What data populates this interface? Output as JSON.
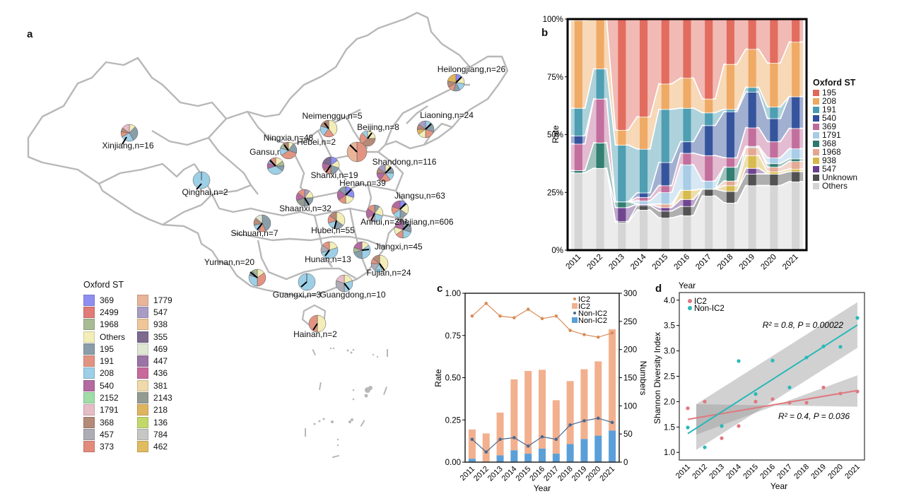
{
  "panels": {
    "a": "a",
    "b": "b",
    "c": "c",
    "d": "d"
  },
  "map": {
    "legend_title": "Oxford ST",
    "legend_col1": [
      {
        "label": "369",
        "color": "#8e8ef0"
      },
      {
        "label": "2499",
        "color": "#e07b78"
      },
      {
        "label": "1968",
        "color": "#a8bb94"
      },
      {
        "label": "Others",
        "color": "#f3edb8"
      },
      {
        "label": "195",
        "color": "#8a9eaa"
      },
      {
        "label": "191",
        "color": "#e29482"
      },
      {
        "label": "208",
        "color": "#9dcfe6"
      },
      {
        "label": "540",
        "color": "#b26aa0"
      },
      {
        "label": "2152",
        "color": "#9fdca6"
      },
      {
        "label": "1791",
        "color": "#e6bcc6"
      },
      {
        "label": "368",
        "color": "#b48a78"
      },
      {
        "label": "457",
        "color": "#aeadb6"
      },
      {
        "label": "373",
        "color": "#e28a7c"
      }
    ],
    "legend_col2": [
      {
        "label": "1779",
        "color": "#e8b49a"
      },
      {
        "label": "547",
        "color": "#a89cc4"
      },
      {
        "label": "938",
        "color": "#efc698"
      },
      {
        "label": "355",
        "color": "#7d6a8e"
      },
      {
        "label": "469",
        "color": "#dfe6d4"
      },
      {
        "label": "447",
        "color": "#9a74a4"
      },
      {
        "label": "436",
        "color": "#c86a9c"
      },
      {
        "label": "381",
        "color": "#f0d9aa"
      },
      {
        "label": "2143",
        "color": "#949c92"
      },
      {
        "label": "218",
        "color": "#deb45e"
      },
      {
        "label": "136",
        "color": "#c2d86a"
      },
      {
        "label": "784",
        "color": "#c6c6c4"
      },
      {
        "label": "462",
        "color": "#e0bc60"
      }
    ],
    "provinces": [
      {
        "label": "Xinjiang,n=16",
        "pie": [
          0.12,
          0.3,
          0.25,
          0.1,
          0.08,
          0.15
        ],
        "colors": [
          "#f3edb8",
          "#8a9eaa",
          "#9dcfe6",
          "#e29482",
          "#b48a78",
          "#e6bcc6"
        ]
      },
      {
        "label": "Qinghai,n=2",
        "pie": [
          1.0
        ],
        "colors": [
          "#9dcfe6"
        ]
      },
      {
        "label": "Gansu,n=20",
        "pie": [
          0.15,
          0.1,
          0.1,
          0.35,
          0.1,
          0.1,
          0.1
        ],
        "colors": [
          "#f3edb8",
          "#a8bb94",
          "#8a9eaa",
          "#9dcfe6",
          "#b26aa0",
          "#a89cc4",
          "#e29482"
        ]
      },
      {
        "label": "Ningxia,n=48",
        "pie": [
          0.1,
          0.2,
          0.35,
          0.15,
          0.1,
          0.1
        ],
        "colors": [
          "#f3edb8",
          "#8a9eaa",
          "#e29482",
          "#9dcfe6",
          "#a8bb94",
          "#b48a78"
        ]
      },
      {
        "label": "Neimenggu,n=5",
        "pie": [
          0.4,
          0.2,
          0.2,
          0.2
        ],
        "colors": [
          "#f3edb8",
          "#e29482",
          "#9dcfe6",
          "#b48a78"
        ]
      },
      {
        "label": "Beijing,n=8",
        "pie": [
          0.25,
          0.375,
          0.25,
          0.125
        ],
        "colors": [
          "#f3edb8",
          "#b48a78",
          "#e29482",
          "#9dcfe6"
        ]
      },
      {
        "label": "Hebei,n=2",
        "pie": [
          0.5,
          0.5
        ],
        "colors": [
          "#e29482",
          "#e8b49a"
        ]
      },
      {
        "label": "Liaoning,n=24",
        "pie": [
          0.15,
          0.15,
          0.2,
          0.15,
          0.1,
          0.1,
          0.15
        ],
        "colors": [
          "#9dcfe6",
          "#8a9eaa",
          "#e29482",
          "#f3edb8",
          "#deb45e",
          "#b48a78",
          "#a89cc4"
        ]
      },
      {
        "label": "Heilongjiang,n=26",
        "pie": [
          0.12,
          0.15,
          0.15,
          0.12,
          0.12,
          0.12,
          0.22
        ],
        "colors": [
          "#8e8ef0",
          "#f3edb8",
          "#9dcfe6",
          "#8a9eaa",
          "#e29482",
          "#b48a78",
          "#deb45e"
        ]
      },
      {
        "label": "Shanxi,n=19",
        "pie": [
          0.15,
          0.15,
          0.2,
          0.15,
          0.15,
          0.2
        ],
        "colors": [
          "#8e8ef0",
          "#f3edb8",
          "#8a9eaa",
          "#e29482",
          "#b26aa0",
          "#7d6a8e"
        ]
      },
      {
        "label": "Shandong,n=116",
        "pie": [
          0.1,
          0.15,
          0.15,
          0.2,
          0.15,
          0.1,
          0.15
        ],
        "colors": [
          "#f3edb8",
          "#8a9eaa",
          "#9dcfe6",
          "#e29482",
          "#b26aa0",
          "#b48a78",
          "#a89cc4"
        ]
      },
      {
        "label": "Henan,n=39",
        "pie": [
          0.3,
          0.2,
          0.15,
          0.2,
          0.15
        ],
        "colors": [
          "#8e8ef0",
          "#f3edb8",
          "#e29482",
          "#b26aa0",
          "#8a9eaa"
        ]
      },
      {
        "label": "Shaanxi,n=32",
        "pie": [
          0.1,
          0.15,
          0.25,
          0.2,
          0.15,
          0.15
        ],
        "colors": [
          "#a89cc4",
          "#f3edb8",
          "#8a9eaa",
          "#949c92",
          "#b26aa0",
          "#e29482"
        ]
      },
      {
        "label": "Jiangsu,n=63",
        "pie": [
          0.15,
          0.2,
          0.15,
          0.15,
          0.15,
          0.2
        ],
        "colors": [
          "#8e8ef0",
          "#f3edb8",
          "#8a9eaa",
          "#9dcfe6",
          "#e29482",
          "#b26aa0"
        ]
      },
      {
        "label": "Anhui,n=301",
        "pie": [
          0.1,
          0.2,
          0.2,
          0.15,
          0.2,
          0.15
        ],
        "colors": [
          "#8a9eaa",
          "#f3edb8",
          "#9dcfe6",
          "#e6bcc6",
          "#b26aa0",
          "#e29482"
        ]
      },
      {
        "label": "Hubei,n=55",
        "pie": [
          0.35,
          0.2,
          0.15,
          0.15,
          0.15
        ],
        "colors": [
          "#f3edb8",
          "#8a9eaa",
          "#9dcfe6",
          "#e29482",
          "#b48a78"
        ]
      },
      {
        "label": "Zhejiang,n=606",
        "pie": [
          0.3,
          0.2,
          0.15,
          0.15,
          0.2
        ],
        "colors": [
          "#8a9eaa",
          "#9dcfe6",
          "#e29482",
          "#f3edb8",
          "#b26aa0"
        ]
      },
      {
        "label": "Sichuan,n=7",
        "pie": [
          0.43,
          0.14,
          0.14,
          0.15,
          0.14
        ],
        "colors": [
          "#8a9eaa",
          "#e29482",
          "#9dcfe6",
          "#b48a78",
          "#dfe6d4"
        ]
      },
      {
        "label": "Hunan,n=13",
        "pie": [
          0.2,
          0.5,
          0.15,
          0.15
        ],
        "colors": [
          "#f3edb8",
          "#9dcfe6",
          "#aeadb6",
          "#e29482"
        ]
      },
      {
        "label": "Jiangxi,n=45",
        "pie": [
          0.15,
          0.35,
          0.2,
          0.1,
          0.2
        ],
        "colors": [
          "#f3edb8",
          "#9dcfe6",
          "#8a9eaa",
          "#a8bb94",
          "#b26aa0"
        ]
      },
      {
        "label": "Fujian,n=24",
        "pie": [
          0.45,
          0.15,
          0.15,
          0.1,
          0.15
        ],
        "colors": [
          "#f3edb8",
          "#9dcfe6",
          "#aeadb6",
          "#e29482",
          "#b48a78"
        ]
      },
      {
        "label": "Yunnan,n=20",
        "pie": [
          0.15,
          0.35,
          0.3,
          0.1,
          0.1
        ],
        "colors": [
          "#f3edb8",
          "#e29482",
          "#9dcfe6",
          "#8a9eaa",
          "#a8bb94"
        ]
      },
      {
        "label": "Guangxi,n=3",
        "pie": [
          1.0
        ],
        "colors": [
          "#9dcfe6"
        ]
      },
      {
        "label": "Guangdong,n=10",
        "pie": [
          0.2,
          0.3,
          0.3,
          0.2
        ],
        "colors": [
          "#f3edb8",
          "#9dcfe6",
          "#aeadb6",
          "#e6bcc6"
        ]
      },
      {
        "label": "Hainan,n=2",
        "pie": [
          0.5,
          0.5
        ],
        "colors": [
          "#f3edb8",
          "#e29482"
        ]
      }
    ]
  },
  "chart_data": [
    {
      "id": "b",
      "type": "area",
      "title": "",
      "xlabel": "Year",
      "ylabel": "Rate",
      "ylim": [
        0,
        1
      ],
      "yticks": [
        "0%",
        "25%",
        "50%",
        "75%",
        "100%"
      ],
      "categories": [
        "2011",
        "2012",
        "2013",
        "2014",
        "2015",
        "2016",
        "2017",
        "2018",
        "2019",
        "2020",
        "2021"
      ],
      "legend_title": "Oxford ST",
      "legend_position": "right",
      "series": [
        {
          "name": "Others",
          "color": "#d4d4d4",
          "values": [
            0.335,
            0.355,
            0.12,
            0.175,
            0.14,
            0.15,
            0.235,
            0.205,
            0.28,
            0.28,
            0.27
          ]
        },
        {
          "name": "Unknown",
          "color": "#4d4d4d",
          "values": [
            0.0,
            0.0,
            0.005,
            0.02,
            0.03,
            0.04,
            0.03,
            0.05,
            0.05,
            0.05,
            0.04
          ]
        },
        {
          "name": "547",
          "color": "#6b3f8c",
          "values": [
            0.0,
            0.0,
            0.06,
            0.005,
            0.015,
            0.03,
            0.0,
            0.0,
            0.025,
            0.0,
            0.0
          ]
        },
        {
          "name": "938",
          "color": "#d6b84a",
          "values": [
            0.0,
            0.0,
            0.0,
            0.0,
            0.0,
            0.04,
            0.0,
            0.025,
            0.055,
            0.01,
            0.01
          ]
        },
        {
          "name": "1968",
          "color": "#e2a690",
          "values": [
            0.0,
            0.0,
            0.0,
            0.0,
            0.015,
            0.0,
            0.0,
            0.02,
            0.035,
            0.02,
            0.03
          ]
        },
        {
          "name": "368",
          "color": "#2c7a6c",
          "values": [
            0.01,
            0.11,
            0.025,
            0.0,
            0.0,
            0.0,
            0.0,
            0.06,
            0.0,
            0.015,
            0.01
          ]
        },
        {
          "name": "1791",
          "color": "#a7cbe6",
          "values": [
            0.0,
            0.0,
            0.0,
            0.015,
            0.05,
            0.11,
            0.035,
            0.0,
            0.005,
            0.025,
            0.04
          ]
        },
        {
          "name": "369",
          "color": "#c06a9a",
          "values": [
            0.115,
            0.19,
            0.0,
            0.015,
            0.03,
            0.05,
            0.11,
            0.04,
            0.08,
            0.07,
            0.08
          ]
        },
        {
          "name": "540",
          "color": "#2f4f9a",
          "values": [
            0.035,
            0.0,
            0.0,
            0.02,
            0.1,
            0.05,
            0.13,
            0.2,
            0.155,
            0.1,
            0.125
          ]
        },
        {
          "name": "191",
          "color": "#4a9bb0",
          "values": [
            0.12,
            0.13,
            0.245,
            0.19,
            0.23,
            0.145,
            0.055,
            0.01,
            0.02,
            0.05,
            0.0
          ]
        },
        {
          "name": "208",
          "color": "#eea860",
          "values": [
            0.38,
            0.215,
            0.065,
            0.14,
            0.11,
            0.13,
            0.06,
            0.195,
            0.165,
            0.19,
            0.215
          ]
        },
        {
          "name": "195",
          "color": "#e0675a",
          "values": [
            0.005,
            0.0,
            0.48,
            0.425,
            0.28,
            0.255,
            0.345,
            0.195,
            0.13,
            0.19,
            0.09
          ]
        }
      ]
    },
    {
      "id": "c",
      "type": "bar",
      "xlabel": "Year",
      "ylabel": "Rate",
      "y2label": "Numbers",
      "ylim": [
        0,
        1
      ],
      "y2lim": [
        0,
        300
      ],
      "yticks": [
        "0.00",
        "0.25",
        "0.50",
        "0.75",
        "1.00"
      ],
      "y2ticks": [
        "0",
        "50",
        "100",
        "150",
        "200",
        "250",
        "300"
      ],
      "categories": [
        "2011",
        "2012",
        "2013",
        "2014",
        "2015",
        "2016",
        "2017",
        "2018",
        "2019",
        "2020",
        "2021"
      ],
      "legend_position": "top-right",
      "legend": [
        "IC2",
        "IC2",
        "Non-IC2",
        "Non-IC2"
      ],
      "bars": [
        {
          "name": "IC2",
          "color": "#f2b08e",
          "values": [
            52,
            51,
            76,
            126,
            147,
            140,
            95,
            112,
            124,
            132,
            180
          ]
        },
        {
          "name": "Non-IC2",
          "color": "#5b9fd8",
          "values": [
            6,
            0,
            12,
            21,
            15,
            24,
            15,
            32,
            41,
            47,
            56
          ]
        }
      ],
      "lines": [
        {
          "name": "IC2",
          "color": "#d98c5a",
          "values": [
            0.865,
            0.94,
            0.865,
            0.855,
            0.905,
            0.85,
            0.865,
            0.78,
            0.755,
            0.74,
            0.765
          ]
        },
        {
          "name": "Non-IC2",
          "color": "#4a6a90",
          "values": [
            0.135,
            0.06,
            0.135,
            0.145,
            0.095,
            0.15,
            0.135,
            0.22,
            0.245,
            0.26,
            0.235
          ]
        }
      ]
    },
    {
      "id": "d",
      "type": "scatter",
      "xlabel": "Year",
      "ylabel": "Shannon Diversity Index",
      "ylim": [
        0.85,
        4.15
      ],
      "yticks": [
        "1.0",
        "1.5",
        "2.0",
        "2.5",
        "3.0",
        "3.5",
        "4.0"
      ],
      "categories": [
        "2011",
        "2012",
        "2013",
        "2014",
        "2015",
        "2016",
        "2017",
        "2018",
        "2019",
        "2020",
        "2021"
      ],
      "legend_position": "top-left",
      "series": [
        {
          "name": "IC2",
          "color": "#e07880",
          "values": [
            1.87,
            2.0,
            1.28,
            1.52,
            2.0,
            2.05,
            1.98,
            1.98,
            2.28,
            2.16,
            2.2
          ],
          "fit": [
            1.65,
            2.22
          ],
          "band": [
            [
              1.95,
              1.35
            ],
            [
              1.9,
              2.52
            ]
          ],
          "annotation": "R² = 0.4, P = 0.036"
        },
        {
          "name": "Non-IC2",
          "color": "#2ab8b8",
          "values": [
            1.49,
            1.1,
            1.52,
            2.8,
            2.15,
            2.81,
            2.28,
            2.87,
            3.09,
            3.08,
            3.65
          ],
          "fit": [
            1.37,
            3.51
          ],
          "band": [
            [
              1.95,
              1.05
            ],
            [
              3.96,
              3.06
            ]
          ],
          "annotation": "R² = 0.8, P = 0.00022"
        }
      ]
    }
  ]
}
